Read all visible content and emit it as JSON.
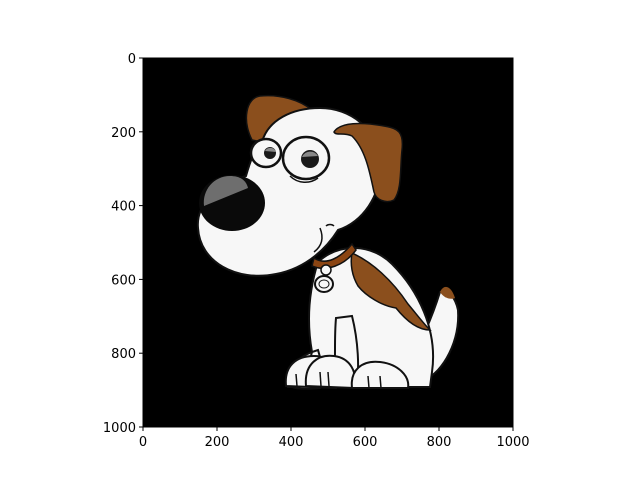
{
  "chart_data": {
    "type": "image",
    "title": "",
    "xlabel": "",
    "ylabel": "",
    "xlim": [
      0,
      1000
    ],
    "ylim": [
      1000,
      0
    ],
    "x_ticks": [
      0,
      200,
      400,
      600,
      800,
      1000
    ],
    "y_ticks": [
      0,
      200,
      400,
      600,
      800,
      1000
    ],
    "x_tick_labels": [
      "0",
      "200",
      "400",
      "600",
      "800",
      "1000"
    ],
    "y_tick_labels": [
      "0",
      "200",
      "400",
      "600",
      "800",
      "1000"
    ],
    "image_subject": "cartoon puppy with brown ears and collar",
    "background_color": "#000000"
  },
  "colors": {
    "body": "#f7f7f7",
    "outline": "#111111",
    "patch": "#8b4f1d",
    "nose": "#0a0a0a",
    "nose_highlight": "#6e6e6e",
    "eye_pupil": "#1a1a1a",
    "collar": "#8b4513"
  }
}
